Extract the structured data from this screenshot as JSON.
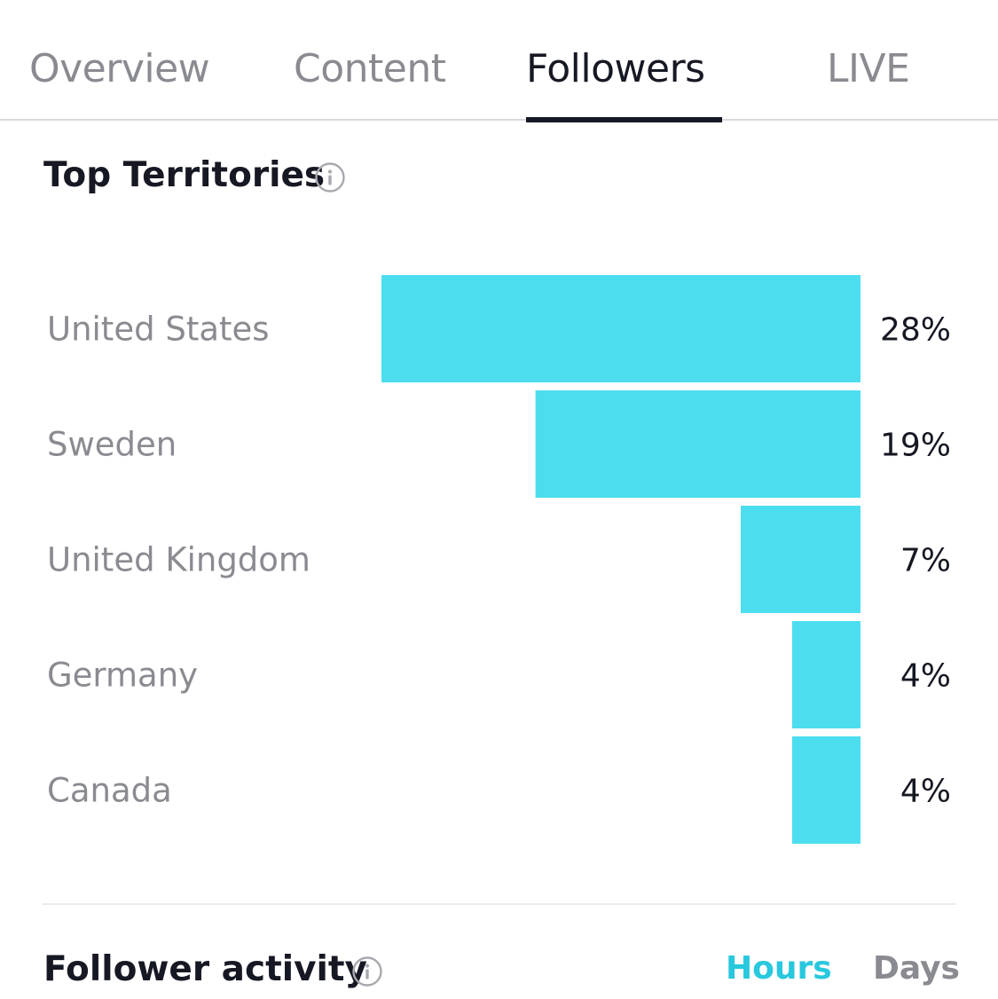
{
  "tabs": [
    {
      "label": "Overview",
      "active": false
    },
    {
      "label": "Content",
      "active": false
    },
    {
      "label": "Followers",
      "active": true
    },
    {
      "label": "LIVE",
      "active": false
    }
  ],
  "top_territories": {
    "title": "Top Territories",
    "info_icon": "info-icon"
  },
  "chart_data": {
    "type": "bar",
    "orientation": "horizontal",
    "categories": [
      "United States",
      "Sweden",
      "United Kingdom",
      "Germany",
      "Canada"
    ],
    "values": [
      28,
      19,
      7,
      4,
      4
    ],
    "value_labels": [
      "28%",
      "19%",
      "7%",
      "4%",
      "4%"
    ],
    "unit": "%",
    "bar_color": "#4cdeef",
    "xlim": [
      0,
      28
    ],
    "grid": false,
    "legend": "none"
  },
  "follower_activity": {
    "title": "Follower activity",
    "info_icon": "info-icon",
    "toggle": {
      "hours_label": "Hours",
      "days_label": "Days",
      "selected": "Hours",
      "active_color": "#28c8de",
      "inactive_color": "#8a8b91"
    }
  }
}
